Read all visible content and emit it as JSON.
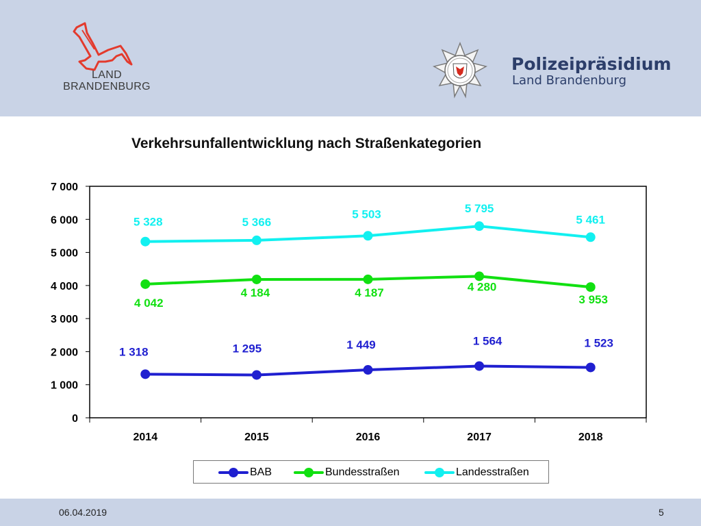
{
  "header": {
    "brand_line1": "LAND",
    "brand_line2": "BRANDENBURG",
    "police_title": "Polizeipräsidium",
    "police_subtitle": "Land Brandenburg"
  },
  "footer": {
    "date": "06.04.2019",
    "page": "5"
  },
  "colors": {
    "header_band": "#c9d3e6",
    "bab": "#1f1fd0",
    "bundesstrassen": "#11e011",
    "landesstrassen": "#12f0f0"
  },
  "chart_data": {
    "type": "line",
    "title": "Verkehrsunfallentwicklung nach Straßenkategorien",
    "categories": [
      "2014",
      "2015",
      "2016",
      "2017",
      "2018"
    ],
    "y_ticks": [
      "0",
      "1 000",
      "2 000",
      "3 000",
      "4 000",
      "5 000",
      "6 000",
      "7 000"
    ],
    "ylim": [
      0,
      7000
    ],
    "grid": false,
    "legend_position": "bottom",
    "series": [
      {
        "name": "BAB",
        "color": "#1f1fd0",
        "values": [
          1318,
          1295,
          1449,
          1564,
          1523
        ],
        "labels": [
          "1 318",
          "1 295",
          "1 449",
          "1 564",
          "1 523"
        ]
      },
      {
        "name": "Bundesstraßen",
        "color": "#11e011",
        "values": [
          4042,
          4184,
          4187,
          4280,
          3953
        ],
        "labels": [
          "4 042",
          "4 184",
          "4 187",
          "4 280",
          "3 953"
        ]
      },
      {
        "name": "Landesstraßen",
        "color": "#12f0f0",
        "values": [
          5328,
          5366,
          5503,
          5795,
          5461
        ],
        "labels": [
          "5 328",
          "5 366",
          "5 503",
          "5 795",
          "5 461"
        ]
      }
    ]
  }
}
